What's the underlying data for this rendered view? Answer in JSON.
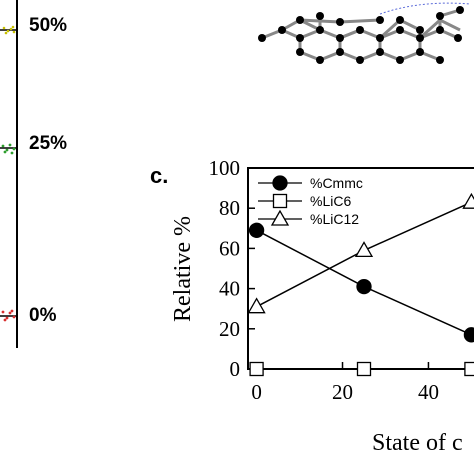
{
  "left_panel": {
    "labels": [
      "50%",
      "25%",
      "0%"
    ]
  },
  "panel_label": "c.",
  "chart_data": {
    "type": "line",
    "xlabel": "State of c",
    "ylabel": "Relative %",
    "xlim": [
      -2,
      52
    ],
    "ylim": [
      0,
      100
    ],
    "x_ticks": [
      "0",
      "20",
      "40"
    ],
    "y_ticks": [
      "0",
      "20",
      "40",
      "60",
      "80",
      "100"
    ],
    "legend_position": "top-left",
    "grid": false,
    "series": [
      {
        "name": "%Cmmc",
        "marker": "filled-circle",
        "x": [
          0,
          25,
          50
        ],
        "y": [
          69,
          41,
          17
        ]
      },
      {
        "name": "%LiC6",
        "marker": "open-square",
        "x": [
          0,
          25,
          50
        ],
        "y": [
          0,
          0,
          0
        ]
      },
      {
        "name": "%LiC12",
        "marker": "open-triangle",
        "x": [
          0,
          25,
          50
        ],
        "y": [
          31,
          59,
          83
        ]
      }
    ]
  }
}
